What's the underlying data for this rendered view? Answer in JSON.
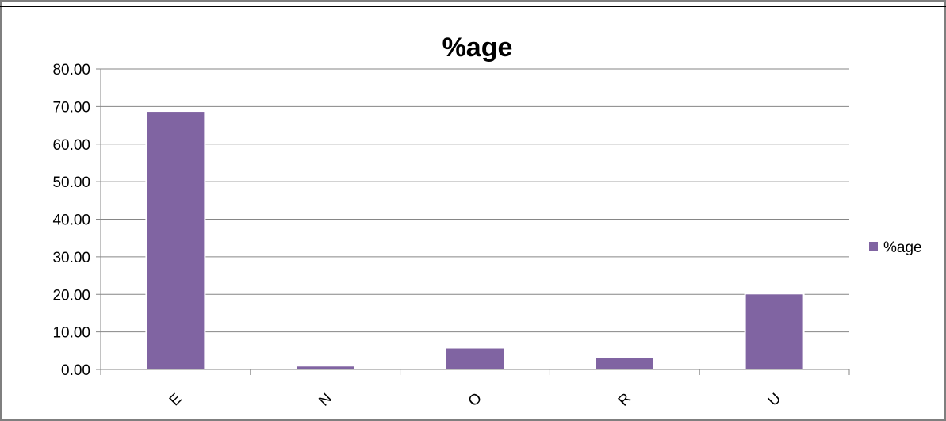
{
  "chart_data": {
    "type": "bar",
    "title": "%age",
    "categories": [
      "E",
      "N",
      "O",
      "R",
      "U"
    ],
    "series": [
      {
        "name": "%age",
        "values": [
          68.8,
          1.0,
          5.8,
          3.2,
          20.2
        ]
      }
    ],
    "ylim": [
      0,
      80
    ],
    "yticks": [
      "0.00",
      "10.00",
      "20.00",
      "30.00",
      "40.00",
      "50.00",
      "60.00",
      "70.00",
      "80.00"
    ],
    "grid": true,
    "legend": "right",
    "colors": {
      "bar": "#8064a2",
      "gridline": "#868686",
      "frame": "#7f7f7f"
    }
  }
}
